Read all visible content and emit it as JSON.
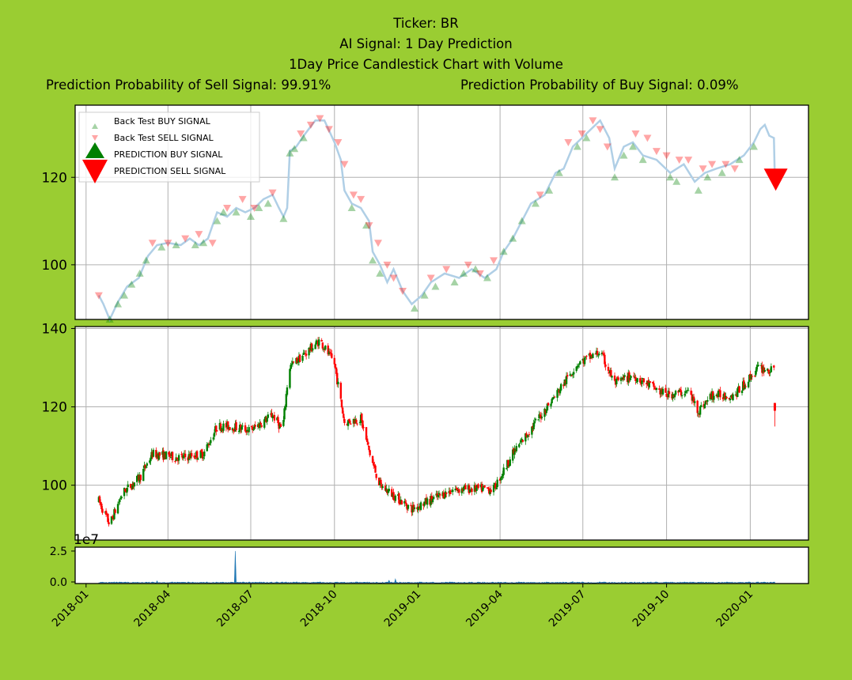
{
  "title": {
    "ticker": "Ticker: BR",
    "signal": "AI Signal: 1 Day Prediction",
    "chart": "1Day Price Candlestick Chart with Volume",
    "sell_prob": "Prediction Probability of Sell Signal: 99.91%",
    "buy_prob": "Prediction Probability of Buy Signal: 0.09%"
  },
  "legend": {
    "bt_buy": "Back Test BUY SIGNAL",
    "bt_sell": "Back Test SELL SIGNAL",
    "pred_buy": "PREDICTION BUY SIGNAL",
    "pred_sell": "PREDICTION SELL SIGNAL",
    "placement": "upper-left"
  },
  "colors": {
    "background": "#9acd32",
    "buy": "#008000",
    "sell": "#ff0000",
    "price_line": "#b0cfe6",
    "volume": "#1f77b4"
  },
  "chart_data": [
    {
      "type": "line",
      "panel": "price_with_signals",
      "x_range": [
        "2017-12-20",
        "2020-03-05"
      ],
      "ylim": [
        87.5,
        136.5
      ],
      "yticks": [
        100,
        120
      ],
      "grid": true,
      "price": [
        [
          "2018-01-15",
          93
        ],
        [
          "2018-01-20",
          91
        ],
        [
          "2018-01-27",
          87.5
        ],
        [
          "2018-02-05",
          91.5
        ],
        [
          "2018-02-15",
          95
        ],
        [
          "2018-02-28",
          97
        ],
        [
          "2018-03-10",
          102
        ],
        [
          "2018-03-20",
          104.5
        ],
        [
          "2018-04-01",
          105
        ],
        [
          "2018-04-15",
          104.5
        ],
        [
          "2018-04-25",
          106
        ],
        [
          "2018-05-05",
          104.5
        ],
        [
          "2018-05-15",
          106
        ],
        [
          "2018-05-25",
          112
        ],
        [
          "2018-06-05",
          111
        ],
        [
          "2018-06-15",
          113
        ],
        [
          "2018-06-25",
          112
        ],
        [
          "2018-07-05",
          113
        ],
        [
          "2018-07-15",
          115
        ],
        [
          "2018-07-25",
          116
        ],
        [
          "2018-08-01",
          113
        ],
        [
          "2018-08-06",
          111
        ],
        [
          "2018-08-10",
          113
        ],
        [
          "2018-08-13",
          126
        ],
        [
          "2018-08-20",
          127
        ],
        [
          "2018-08-30",
          130
        ],
        [
          "2018-09-10",
          133
        ],
        [
          "2018-09-20",
          133
        ],
        [
          "2018-10-01",
          128
        ],
        [
          "2018-10-08",
          124
        ],
        [
          "2018-10-12",
          117
        ],
        [
          "2018-10-20",
          114
        ],
        [
          "2018-10-30",
          113
        ],
        [
          "2018-11-08",
          110
        ],
        [
          "2018-11-12",
          103
        ],
        [
          "2018-11-20",
          100
        ],
        [
          "2018-11-28",
          96
        ],
        [
          "2018-12-05",
          99
        ],
        [
          "2018-12-15",
          94
        ],
        [
          "2018-12-25",
          91
        ],
        [
          "2019-01-05",
          93
        ],
        [
          "2019-01-15",
          96
        ],
        [
          "2019-01-30",
          98
        ],
        [
          "2019-02-15",
          97
        ],
        [
          "2019-03-01",
          99
        ],
        [
          "2019-03-15",
          97
        ],
        [
          "2019-03-28",
          99
        ],
        [
          "2019-04-05",
          103
        ],
        [
          "2019-04-15",
          106
        ],
        [
          "2019-04-25",
          110
        ],
        [
          "2019-05-05",
          114
        ],
        [
          "2019-05-20",
          116
        ],
        [
          "2019-06-01",
          121
        ],
        [
          "2019-06-10",
          122
        ],
        [
          "2019-06-20",
          127
        ],
        [
          "2019-06-30",
          129
        ],
        [
          "2019-07-10",
          131
        ],
        [
          "2019-07-20",
          133
        ],
        [
          "2019-07-30",
          129
        ],
        [
          "2019-08-05",
          122
        ],
        [
          "2019-08-15",
          127
        ],
        [
          "2019-08-25",
          128
        ],
        [
          "2019-09-05",
          125
        ],
        [
          "2019-09-20",
          124
        ],
        [
          "2019-10-05",
          121
        ],
        [
          "2019-10-20",
          123
        ],
        [
          "2019-11-01",
          119
        ],
        [
          "2019-11-12",
          121
        ],
        [
          "2019-11-25",
          122
        ],
        [
          "2019-12-10",
          123
        ],
        [
          "2019-12-25",
          125
        ],
        [
          "2020-01-05",
          128
        ],
        [
          "2020-01-12",
          131
        ],
        [
          "2020-01-17",
          132
        ],
        [
          "2020-01-22",
          129.5
        ],
        [
          "2020-01-27",
          129
        ],
        [
          "2020-01-28",
          120
        ]
      ],
      "backtest_buy": [
        [
          "2018-01-27",
          87.5
        ],
        [
          "2018-02-05",
          91
        ],
        [
          "2018-02-12",
          93
        ],
        [
          "2018-02-20",
          95.5
        ],
        [
          "2018-03-01",
          98
        ],
        [
          "2018-03-08",
          101
        ],
        [
          "2018-03-25",
          104
        ],
        [
          "2018-04-10",
          104.5
        ],
        [
          "2018-05-01",
          104.5
        ],
        [
          "2018-05-10",
          105
        ],
        [
          "2018-05-25",
          110
        ],
        [
          "2018-06-01",
          112
        ],
        [
          "2018-06-15",
          112
        ],
        [
          "2018-07-01",
          111
        ],
        [
          "2018-07-10",
          113
        ],
        [
          "2018-07-20",
          114
        ],
        [
          "2018-08-06",
          110.5
        ],
        [
          "2018-08-13",
          125.5
        ],
        [
          "2018-08-18",
          126.5
        ],
        [
          "2018-08-28",
          129
        ],
        [
          "2018-10-20",
          113
        ],
        [
          "2018-11-05",
          109
        ],
        [
          "2018-11-12",
          101
        ],
        [
          "2018-11-20",
          98
        ],
        [
          "2018-12-28",
          90
        ],
        [
          "2019-01-08",
          93
        ],
        [
          "2019-01-20",
          95
        ],
        [
          "2019-02-10",
          96
        ],
        [
          "2019-02-20",
          98
        ],
        [
          "2019-03-05",
          99
        ],
        [
          "2019-03-18",
          97
        ],
        [
          "2019-04-05",
          103
        ],
        [
          "2019-04-15",
          106
        ],
        [
          "2019-04-25",
          110
        ],
        [
          "2019-05-10",
          114
        ],
        [
          "2019-05-25",
          117
        ],
        [
          "2019-06-05",
          121
        ],
        [
          "2019-06-25",
          127
        ],
        [
          "2019-07-05",
          129
        ],
        [
          "2019-08-05",
          120
        ],
        [
          "2019-08-15",
          125
        ],
        [
          "2019-08-25",
          127
        ],
        [
          "2019-09-05",
          124
        ],
        [
          "2019-10-05",
          120
        ],
        [
          "2019-10-12",
          119
        ],
        [
          "2019-11-05",
          117
        ],
        [
          "2019-11-15",
          120
        ],
        [
          "2019-12-01",
          121
        ],
        [
          "2019-12-20",
          124
        ],
        [
          "2020-01-05",
          127
        ]
      ],
      "backtest_sell": [
        [
          "2018-01-15",
          93
        ],
        [
          "2018-03-15",
          105
        ],
        [
          "2018-04-01",
          105
        ],
        [
          "2018-04-20",
          106
        ],
        [
          "2018-05-05",
          107
        ],
        [
          "2018-05-20",
          105
        ],
        [
          "2018-06-05",
          113
        ],
        [
          "2018-06-22",
          115
        ],
        [
          "2018-07-05",
          113
        ],
        [
          "2018-07-25",
          116.5
        ],
        [
          "2018-08-25",
          130
        ],
        [
          "2018-09-05",
          132
        ],
        [
          "2018-09-15",
          133.5
        ],
        [
          "2018-09-25",
          131
        ],
        [
          "2018-10-05",
          128
        ],
        [
          "2018-10-12",
          123
        ],
        [
          "2018-10-22",
          116
        ],
        [
          "2018-10-30",
          115
        ],
        [
          "2018-11-08",
          109
        ],
        [
          "2018-11-18",
          105
        ],
        [
          "2018-11-28",
          100
        ],
        [
          "2018-12-05",
          97
        ],
        [
          "2018-12-15",
          94
        ],
        [
          "2019-01-15",
          97
        ],
        [
          "2019-02-01",
          99
        ],
        [
          "2019-02-25",
          100
        ],
        [
          "2019-03-10",
          98
        ],
        [
          "2019-03-25",
          101
        ],
        [
          "2019-05-15",
          116
        ],
        [
          "2019-06-15",
          128
        ],
        [
          "2019-06-30",
          130
        ],
        [
          "2019-07-12",
          133
        ],
        [
          "2019-07-20",
          131
        ],
        [
          "2019-07-28",
          127
        ],
        [
          "2019-08-28",
          130
        ],
        [
          "2019-09-10",
          129
        ],
        [
          "2019-09-20",
          126
        ],
        [
          "2019-10-01",
          125
        ],
        [
          "2019-10-15",
          124
        ],
        [
          "2019-10-25",
          124
        ],
        [
          "2019-11-10",
          122
        ],
        [
          "2019-11-20",
          123
        ],
        [
          "2019-12-05",
          123
        ],
        [
          "2019-12-15",
          122
        ]
      ],
      "prediction_sell": [
        [
          "2020-01-29",
          120
        ]
      ]
    },
    {
      "type": "candlestick",
      "panel": "candlestick",
      "ylim": [
        86,
        140.5
      ],
      "yticks": [
        100,
        120,
        140
      ],
      "grid": true,
      "anchors": [
        [
          "2018-01-15",
          96
        ],
        [
          "2018-01-27",
          90
        ],
        [
          "2018-02-10",
          98
        ],
        [
          "2018-03-01",
          102
        ],
        [
          "2018-03-15",
          108
        ],
        [
          "2018-04-15",
          107
        ],
        [
          "2018-05-10",
          108
        ],
        [
          "2018-05-25",
          115
        ],
        [
          "2018-06-10",
          115
        ],
        [
          "2018-07-01",
          114
        ],
        [
          "2018-07-25",
          118
        ],
        [
          "2018-08-05",
          114
        ],
        [
          "2018-08-12",
          130
        ],
        [
          "2018-09-15",
          137
        ],
        [
          "2018-10-01",
          131
        ],
        [
          "2018-10-12",
          116
        ],
        [
          "2018-10-30",
          117
        ],
        [
          "2018-11-10",
          107
        ],
        [
          "2018-11-20",
          100
        ],
        [
          "2018-12-25",
          94
        ],
        [
          "2019-02-10",
          99
        ],
        [
          "2019-03-25",
          99
        ],
        [
          "2019-04-15",
          108
        ],
        [
          "2019-05-10",
          116
        ],
        [
          "2019-06-01",
          123
        ],
        [
          "2019-06-25",
          131
        ],
        [
          "2019-07-20",
          134
        ],
        [
          "2019-08-05",
          126
        ],
        [
          "2019-08-25",
          128
        ],
        [
          "2019-10-01",
          123
        ],
        [
          "2019-10-25",
          124
        ],
        [
          "2019-11-05",
          119
        ],
        [
          "2019-11-20",
          123
        ],
        [
          "2019-12-15",
          123
        ],
        [
          "2020-01-10",
          130
        ],
        [
          "2020-01-27",
          129
        ]
      ],
      "last_candle": {
        "date": "2020-01-28",
        "open": 121,
        "close": 119,
        "high": 121,
        "low": 115
      }
    },
    {
      "type": "area",
      "panel": "volume",
      "exponent_label": "1e7",
      "ylim": [
        0,
        2.8
      ],
      "yticks": [
        "0.0",
        "2.5"
      ],
      "xticks": [
        "2018-01",
        "2018-04",
        "2018-07",
        "2018-10",
        "2019-01",
        "2019-04",
        "2019-07",
        "2019-10",
        "2020-01"
      ],
      "spikes": [
        [
          "2018-06-14",
          2.5
        ],
        [
          "2018-12-07",
          0.35
        ],
        [
          "2018-11-30",
          0.25
        ],
        [
          "2018-03-20",
          0.2
        ],
        [
          "2019-06-20",
          0.15
        ],
        [
          "2019-09-20",
          0.12
        ]
      ]
    }
  ]
}
